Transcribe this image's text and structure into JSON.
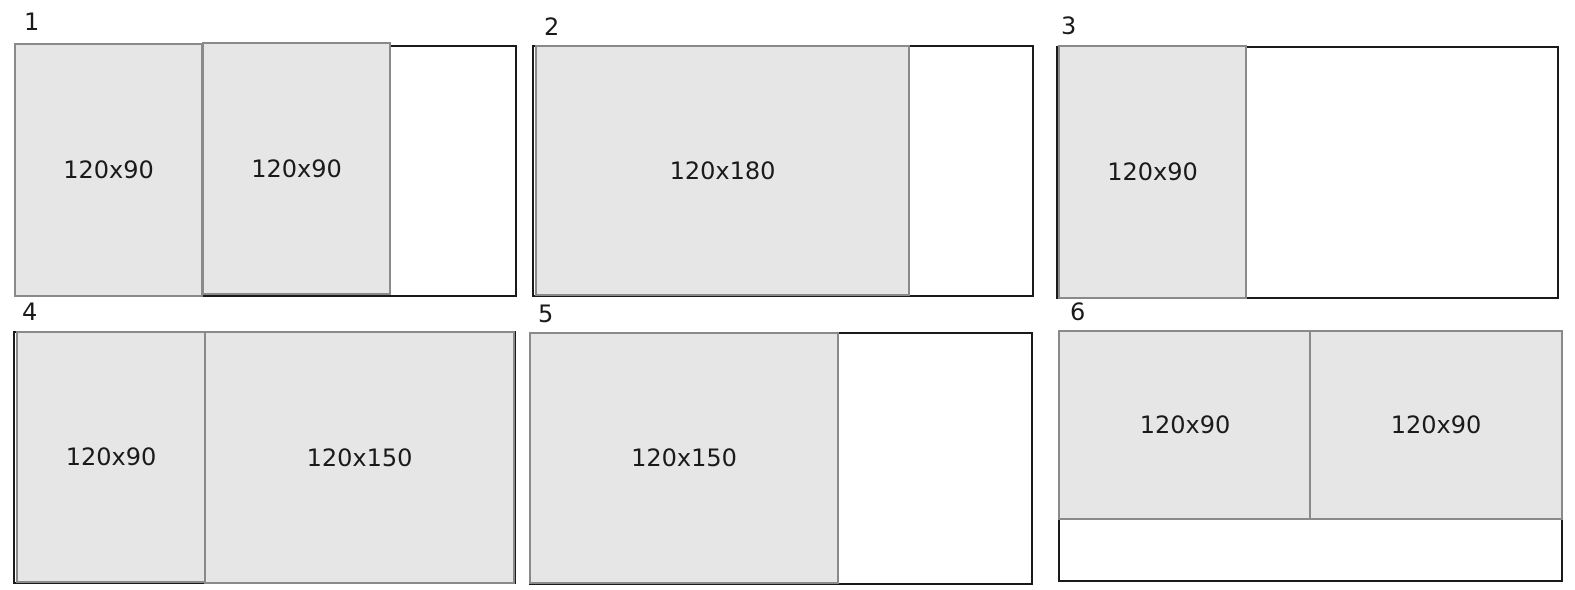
{
  "panels": [
    {
      "label": "1",
      "blocks": [
        "120x90",
        "120x90"
      ]
    },
    {
      "label": "2",
      "blocks": [
        "120x180"
      ]
    },
    {
      "label": "3",
      "blocks": [
        "120x90"
      ]
    },
    {
      "label": "4",
      "blocks": [
        "120x90",
        "120x150"
      ]
    },
    {
      "label": "5",
      "blocks": [
        "120x150"
      ]
    },
    {
      "label": "6",
      "blocks": [
        "120x90",
        "120x90"
      ]
    }
  ],
  "colors": {
    "frame_border": "#1a1a1a",
    "block_fill": "#e6e6e6",
    "block_border": "#8a8a8a",
    "background": "#ffffff"
  }
}
